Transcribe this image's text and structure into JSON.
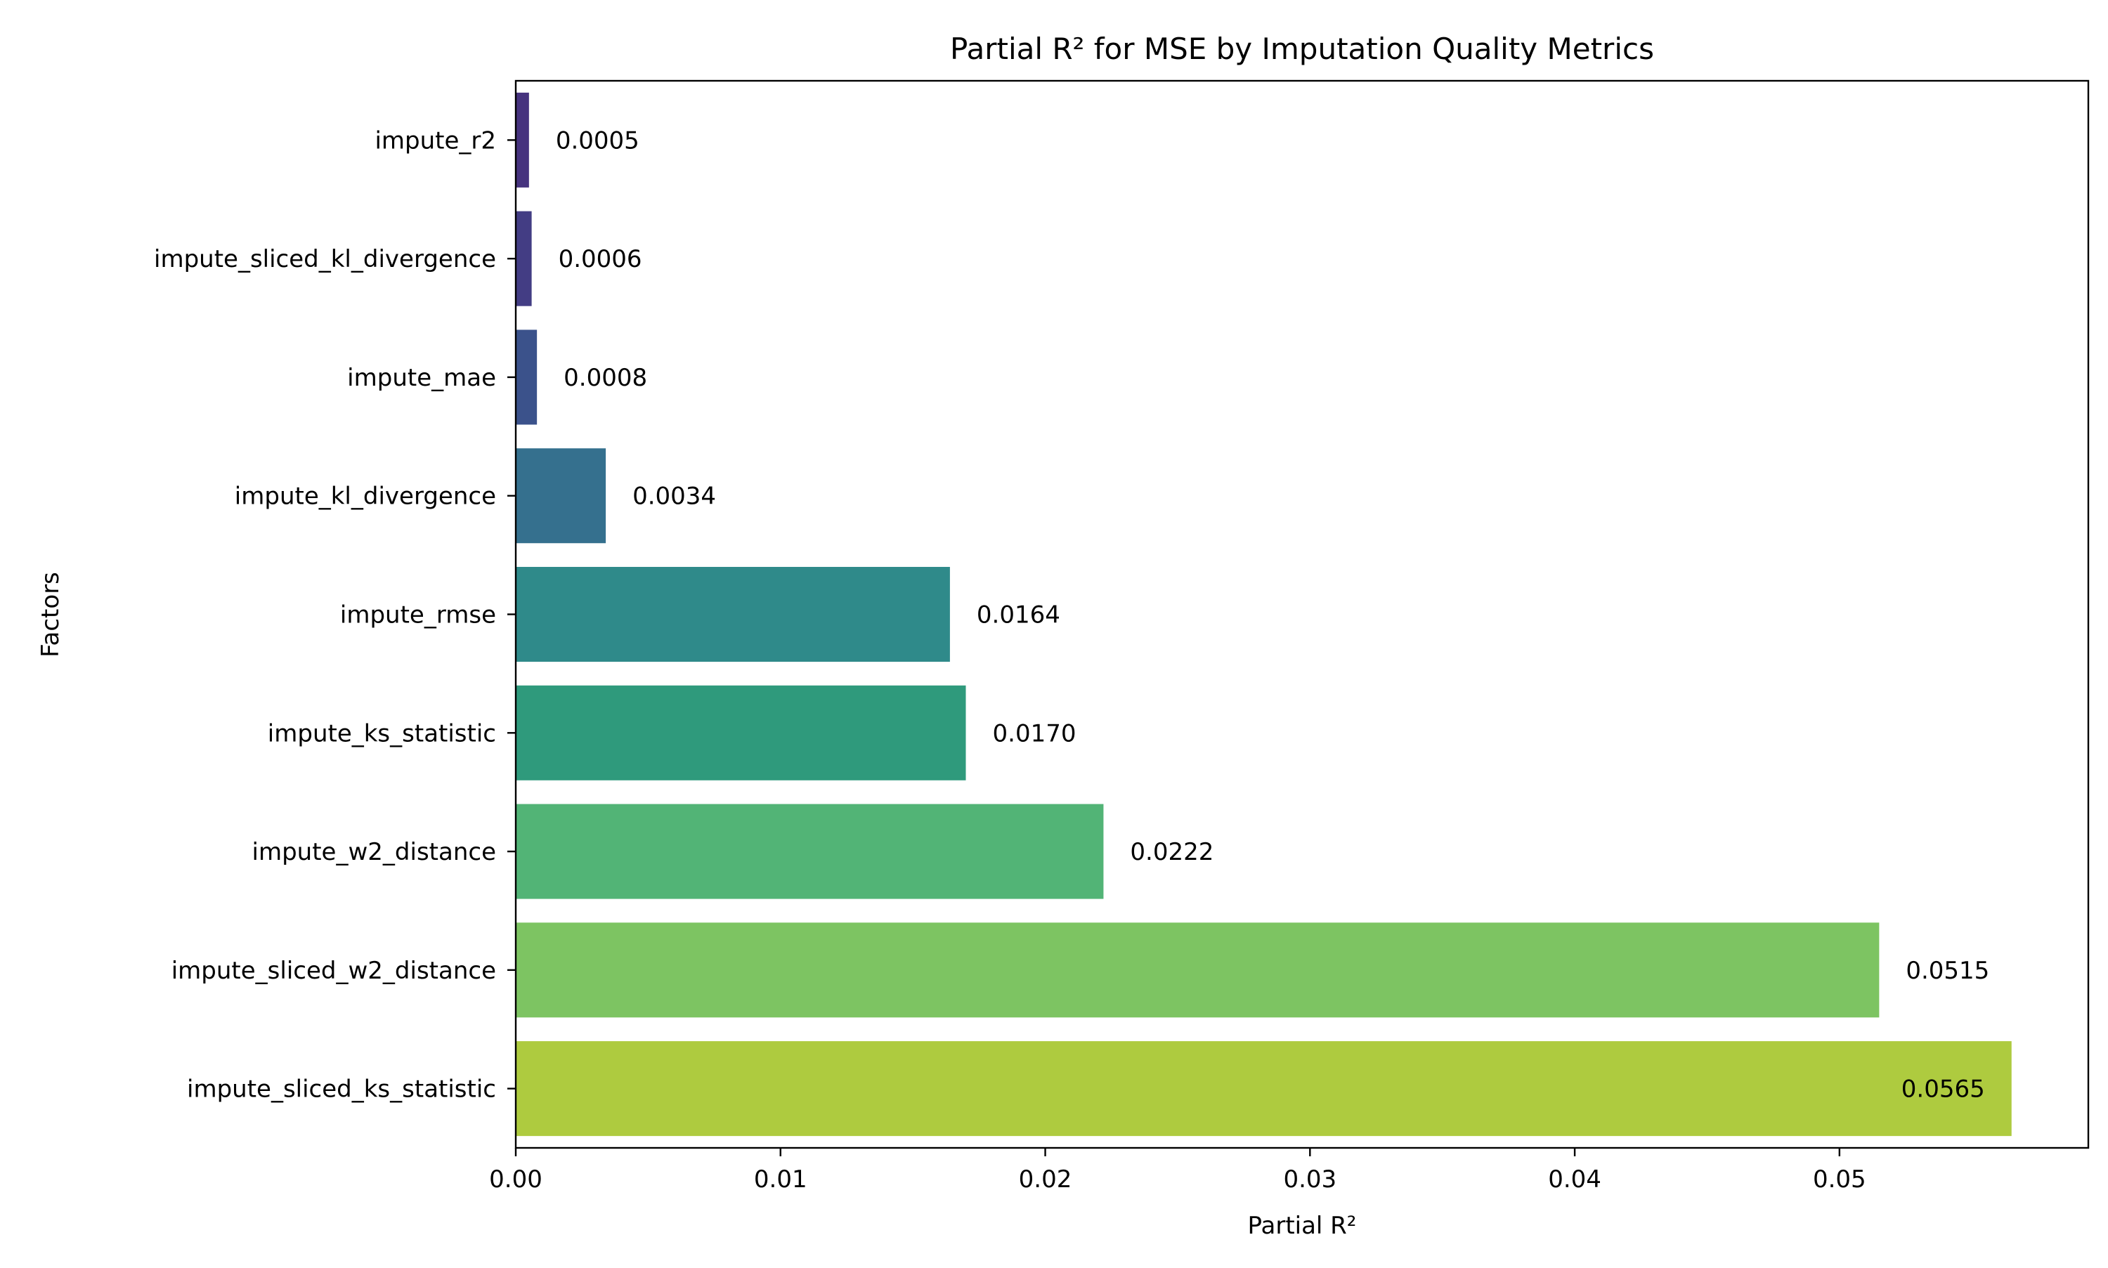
{
  "chart_data": {
    "type": "bar",
    "orientation": "horizontal",
    "title": "Partial R² for MSE by Imputation Quality Metrics",
    "xlabel": "Partial R²",
    "ylabel": "Factors",
    "xlim": [
      0,
      0.0594
    ],
    "x_ticks": [
      "0.00",
      "0.01",
      "0.02",
      "0.03",
      "0.04",
      "0.05"
    ],
    "grid": false,
    "legend": "none",
    "categories": [
      "impute_r2",
      "impute_sliced_kl_divergence",
      "impute_mae",
      "impute_kl_divergence",
      "impute_rmse",
      "impute_ks_statistic",
      "impute_w2_distance",
      "impute_sliced_w2_distance",
      "impute_sliced_ks_statistic"
    ],
    "values": [
      0.0005,
      0.0006,
      0.0008,
      0.0034,
      0.0164,
      0.017,
      0.0222,
      0.0515,
      0.0565
    ],
    "value_labels": [
      "0.0005",
      "0.0006",
      "0.0008",
      "0.0034",
      "0.0164",
      "0.0170",
      "0.0222",
      "0.0515",
      "0.0565"
    ],
    "colors": [
      "#46337e",
      "#433d84",
      "#3b528b",
      "#35708e",
      "#2f8a8a",
      "#2f9a7c",
      "#52b476",
      "#7dc462",
      "#aecb3f"
    ]
  }
}
